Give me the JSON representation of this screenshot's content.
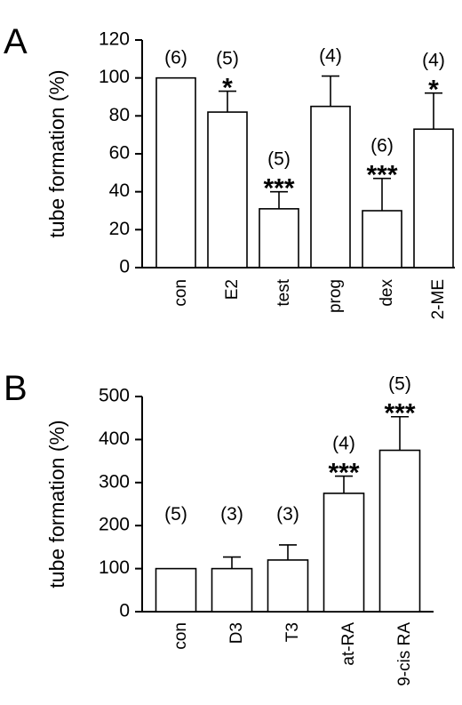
{
  "chart_data": [
    {
      "type": "bar",
      "panel": "A",
      "ylabel": "tube formation (%)",
      "xlabel": "",
      "ylim": [
        0,
        120
      ],
      "yticks": [
        0,
        20,
        40,
        60,
        80,
        100,
        120
      ],
      "categories": [
        "con",
        "E2",
        "test",
        "prog",
        "dex",
        "2-ME"
      ],
      "values": [
        100,
        82,
        31,
        85,
        30,
        73
      ],
      "errors": [
        0,
        11,
        9,
        16,
        17,
        19
      ],
      "n": [
        "(6)",
        "(5)",
        "(5)",
        "(4)",
        "(6)",
        "(4)"
      ],
      "significance": [
        "",
        "*",
        "***",
        "",
        "***",
        "*"
      ],
      "grid": false,
      "colors": {
        "bar_fill": "#ffffff",
        "bar_edge": "#000000"
      }
    },
    {
      "type": "bar",
      "panel": "B",
      "ylabel": "tube formation (%)",
      "xlabel": "",
      "ylim": [
        0,
        500
      ],
      "yticks": [
        0,
        100,
        200,
        300,
        400,
        500
      ],
      "categories": [
        "con",
        "D3",
        "T3",
        "at-RA",
        "9-cis RA"
      ],
      "values": [
        100,
        100,
        120,
        275,
        375
      ],
      "errors": [
        0,
        27,
        35,
        40,
        78
      ],
      "n": [
        "(5)",
        "(3)",
        "(3)",
        "(4)",
        "(5)"
      ],
      "significance": [
        "",
        "",
        "",
        "***",
        "***"
      ],
      "grid": false,
      "colors": {
        "bar_fill": "#ffffff",
        "bar_edge": "#000000"
      }
    }
  ]
}
